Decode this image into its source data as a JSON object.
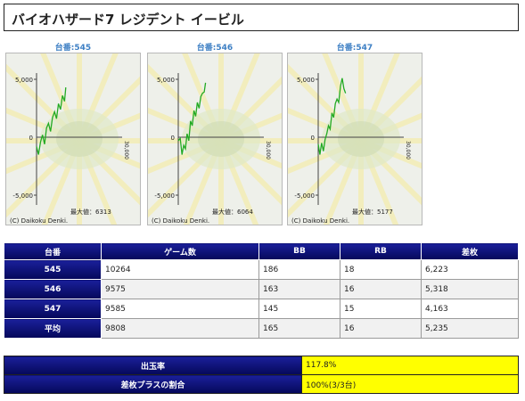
{
  "title": "バイオハザード7 レジデント イービル",
  "panels": [
    {
      "machine": "台番:545",
      "max_label": "最大値：6313",
      "copyright": "(C) Daikoku Denki.",
      "y_top": "5,000",
      "y_zero": "0",
      "y_bottom": "-5,000",
      "x_end": "30,000",
      "line": [
        [
          0,
          -800
        ],
        [
          700,
          -1500
        ],
        [
          1400,
          -400
        ],
        [
          2100,
          200
        ],
        [
          2800,
          -600
        ],
        [
          3500,
          800
        ],
        [
          4200,
          1200
        ],
        [
          4900,
          500
        ],
        [
          5600,
          1700
        ],
        [
          6300,
          2200
        ],
        [
          7000,
          1600
        ],
        [
          7700,
          2900
        ],
        [
          8400,
          2400
        ],
        [
          9100,
          3600
        ],
        [
          9800,
          3100
        ],
        [
          10264,
          4300
        ]
      ]
    },
    {
      "machine": "台番:546",
      "max_label": "最大値：6064",
      "copyright": "(C) Daikoku Denki.",
      "y_top": "5,000",
      "y_zero": "0",
      "y_bottom": "-5,000",
      "x_end": "30,000",
      "line": [
        [
          0,
          -300
        ],
        [
          700,
          -100
        ],
        [
          1300,
          -1500
        ],
        [
          1900,
          -700
        ],
        [
          2500,
          -1000
        ],
        [
          3100,
          300
        ],
        [
          3700,
          -300
        ],
        [
          4300,
          1400
        ],
        [
          4900,
          1000
        ],
        [
          5500,
          2300
        ],
        [
          6100,
          1800
        ],
        [
          6700,
          3000
        ],
        [
          7300,
          2500
        ],
        [
          7900,
          3500
        ],
        [
          8500,
          3800
        ],
        [
          9100,
          3900
        ],
        [
          9575,
          4700
        ]
      ]
    },
    {
      "machine": "台番:547",
      "max_label": "最大値：5177",
      "copyright": "(C) Daikoku Denki.",
      "y_top": "5,000",
      "y_zero": "0",
      "y_bottom": "-5,000",
      "x_end": "30,000",
      "line": [
        [
          0,
          -600
        ],
        [
          600,
          -1500
        ],
        [
          1200,
          -500
        ],
        [
          1800,
          -1200
        ],
        [
          2400,
          -200
        ],
        [
          3000,
          300
        ],
        [
          3600,
          1000
        ],
        [
          4200,
          700
        ],
        [
          4800,
          2100
        ],
        [
          5400,
          1700
        ],
        [
          6000,
          2900
        ],
        [
          6600,
          3300
        ],
        [
          7200,
          3000
        ],
        [
          7800,
          4400
        ],
        [
          8400,
          5100
        ],
        [
          9000,
          4200
        ],
        [
          9585,
          3800
        ]
      ]
    }
  ],
  "table": {
    "headers": [
      "台番",
      "ゲーム数",
      "BB",
      "RB",
      "差枚"
    ],
    "rows": [
      [
        "545",
        "10264",
        "186",
        "18",
        "6,223"
      ],
      [
        "546",
        "9575",
        "163",
        "16",
        "5,318"
      ],
      [
        "547",
        "9585",
        "145",
        "15",
        "4,163"
      ],
      [
        "平均",
        "9808",
        "165",
        "16",
        "5,235"
      ]
    ]
  },
  "summary": [
    {
      "label": "出玉率",
      "value": "117.8%"
    },
    {
      "label": "差枚プラスの割合",
      "value": "100%(3/3台)"
    }
  ],
  "colors": {
    "header_blue": "#0a0f7a",
    "highlight_yellow": "#ffff00",
    "line_green": "#22aa22"
  }
}
